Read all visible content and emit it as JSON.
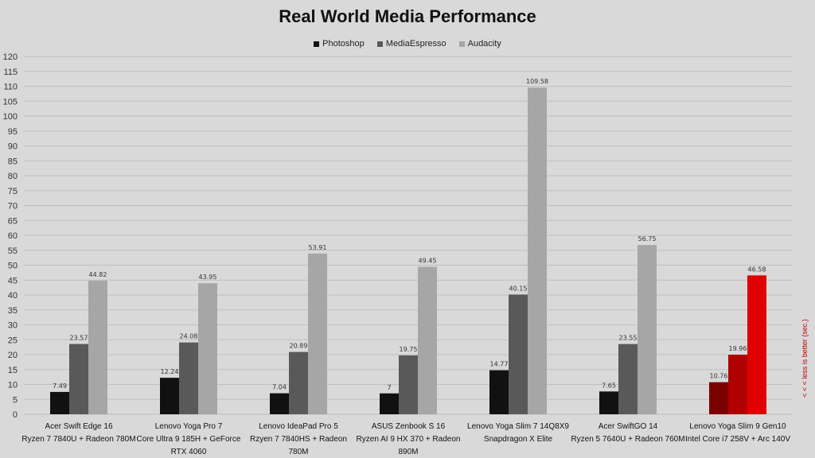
{
  "chart_data": {
    "type": "bar",
    "title": "Real World Media Performance",
    "side_note": "< < <   less is better (sec.)",
    "ylim": [
      0,
      120
    ],
    "yticks": [
      0,
      5,
      10,
      15,
      20,
      25,
      30,
      35,
      40,
      45,
      50,
      55,
      60,
      65,
      70,
      75,
      80,
      85,
      90,
      95,
      100,
      105,
      110,
      115,
      120
    ],
    "grid": true,
    "legend_position": "top-center",
    "categories": [
      [
        "Acer Swift Edge 16",
        "Ryzen 7 7840U + Radeon 780M"
      ],
      [
        "Lenovo Yoga Pro 7",
        "Core Ultra 9 185H + GeForce",
        "RTX 4060"
      ],
      [
        "Lenovo IdeaPad Pro 5",
        "Rzyen 7 7840HS + Radeon",
        "780M"
      ],
      [
        "ASUS Zenbook S 16",
        "Ryzen AI 9 HX 370 + Radeon",
        "890M"
      ],
      [
        "Lenovo Yoga Slim 7 14Q8X9",
        "Snapdragon X Elite"
      ],
      [
        "Acer SwiftGO 14",
        "Ryzen 5 7640U + Radeon 760M"
      ],
      [
        "Lenovo Yoga Slim 9 Gen10",
        "Intel Core i7 258V + Arc 140V"
      ]
    ],
    "series": [
      {
        "name": "Photoshop",
        "color": "#111111",
        "values": [
          7.49,
          12.24,
          7.04,
          7,
          14.77,
          7.65,
          10.76
        ],
        "labels": [
          "7.49",
          "12.24",
          "7.04",
          "7",
          "14.77",
          "7.65",
          "10.76"
        ]
      },
      {
        "name": "MediaEspresso",
        "color": "#595959",
        "values": [
          23.57,
          24.08,
          20.89,
          19.75,
          40.15,
          23.55,
          19.96
        ],
        "labels": [
          "23.57",
          "24.08",
          "20.89",
          "19.75",
          "40.15",
          "23.55",
          "19.96"
        ]
      },
      {
        "name": "Audacity",
        "color": "#a6a6a6",
        "values": [
          44.82,
          43.95,
          53.91,
          49.45,
          109.58,
          56.75,
          46.58
        ],
        "labels": [
          "44.82",
          "43.95",
          "53.91",
          "49.45",
          "109.58",
          "56.75",
          "46.58"
        ]
      }
    ],
    "highlight": {
      "category_index": 6,
      "colors": [
        "#7b0000",
        "#b00000",
        "#e00000"
      ]
    },
    "colors": {
      "background": "#d9d9d9",
      "grid": "#bfbfbf",
      "label": "#333333"
    }
  }
}
